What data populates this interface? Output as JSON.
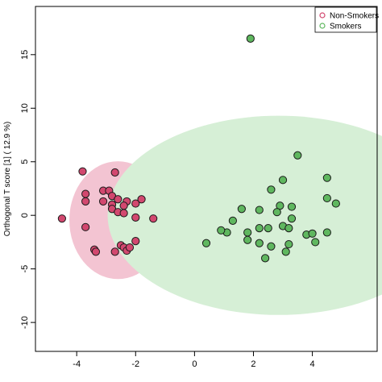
{
  "chart_data": {
    "type": "scatter",
    "title": "",
    "xlabel": "",
    "ylabel": "Orthogonal T score [1] ( 12.9 %)",
    "xlim": [
      -5.4,
      6.2
    ],
    "ylim": [
      -12.7,
      19.5
    ],
    "xticks": [
      "-4",
      "-2",
      "0",
      "2",
      "4"
    ],
    "yticks": [
      "-10",
      "-5",
      "0",
      "5",
      "10",
      "15"
    ],
    "xtick_values": [
      -4,
      -2,
      0,
      2,
      4
    ],
    "ytick_values": [
      -10,
      -5,
      0,
      5,
      10,
      15
    ],
    "grid": false,
    "legend": {
      "placement": "top-right"
    },
    "series": [
      {
        "name": "Non-Smokers",
        "color": "#d2486f",
        "ellipse": {
          "cx": -2.6,
          "cy": -0.45,
          "rx": 1.65,
          "ry": 5.5,
          "fill": "#f3c4d2"
        },
        "points": [
          [
            -4.5,
            -0.3
          ],
          [
            -3.8,
            4.1
          ],
          [
            -3.1,
            2.3
          ],
          [
            -2.9,
            2.3
          ],
          [
            -2.7,
            4.0
          ],
          [
            -3.7,
            2.0
          ],
          [
            -3.7,
            1.3
          ],
          [
            -3.1,
            1.3
          ],
          [
            -2.8,
            1.8
          ],
          [
            -2.6,
            1.5
          ],
          [
            -2.3,
            1.3
          ],
          [
            -2.0,
            1.1
          ],
          [
            -1.8,
            1.5
          ],
          [
            -2.8,
            1.0
          ],
          [
            -2.8,
            0.6
          ],
          [
            -2.6,
            0.3
          ],
          [
            -2.4,
            0.9
          ],
          [
            -2.4,
            0.2
          ],
          [
            -2.0,
            -0.2
          ],
          [
            -1.4,
            -0.3
          ],
          [
            -3.7,
            -1.1
          ],
          [
            -3.4,
            -3.2
          ],
          [
            -3.35,
            -3.4
          ],
          [
            -2.7,
            -3.4
          ],
          [
            -2.5,
            -2.8
          ],
          [
            -2.4,
            -3.0
          ],
          [
            -2.3,
            -3.3
          ],
          [
            -2.2,
            -3.0
          ],
          [
            -2.0,
            -2.4
          ]
        ]
      },
      {
        "name": "Smokers",
        "color": "#5fb75f",
        "ellipse": {
          "cx": 2.85,
          "cy": 0.0,
          "rx": 5.8,
          "ry": 9.3,
          "fill": "#d6efd6"
        },
        "points": [
          [
            1.9,
            16.5
          ],
          [
            3.5,
            5.6
          ],
          [
            3.0,
            3.3
          ],
          [
            4.5,
            3.5
          ],
          [
            2.6,
            2.4
          ],
          [
            4.5,
            1.6
          ],
          [
            2.9,
            0.9
          ],
          [
            4.8,
            1.1
          ],
          [
            1.6,
            0.6
          ],
          [
            2.2,
            0.5
          ],
          [
            3.3,
            0.8
          ],
          [
            2.8,
            0.3
          ],
          [
            1.3,
            -0.5
          ],
          [
            3.3,
            -0.3
          ],
          [
            3.0,
            -1.0
          ],
          [
            3.2,
            -1.2
          ],
          [
            2.2,
            -1.2
          ],
          [
            3.8,
            -1.8
          ],
          [
            4.5,
            -1.6
          ],
          [
            1.1,
            -1.6
          ],
          [
            1.8,
            -1.6
          ],
          [
            0.9,
            -1.4
          ],
          [
            4.0,
            -1.7
          ],
          [
            2.5,
            -1.2
          ],
          [
            1.8,
            -2.3
          ],
          [
            2.2,
            -2.6
          ],
          [
            4.1,
            -2.5
          ],
          [
            3.2,
            -2.7
          ],
          [
            0.4,
            -2.6
          ],
          [
            2.6,
            -2.9
          ],
          [
            3.1,
            -3.4
          ],
          [
            2.4,
            -4.0
          ]
        ]
      }
    ]
  }
}
